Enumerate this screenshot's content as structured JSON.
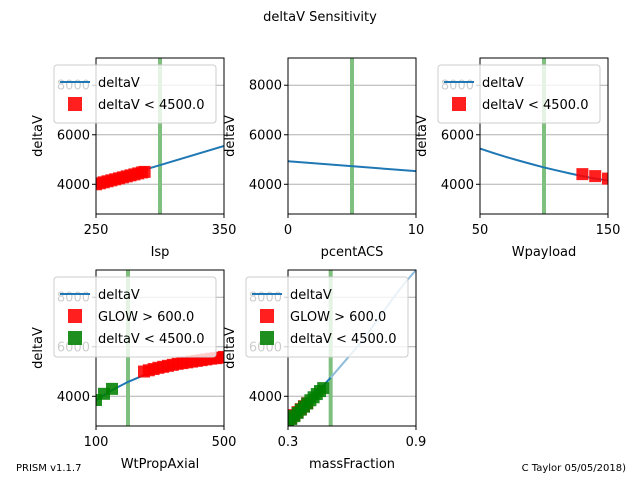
{
  "figure": {
    "title": "deltaV Sensitivity",
    "footer_left": "PRISM v1.1.7",
    "footer_right": "C Taylor 05/05/2018)"
  },
  "colors": {
    "line": "#1f77b4",
    "line_light": "#8fbcdb",
    "marker_red": "#ff0000",
    "marker_green": "#008000",
    "vline": "#7fc07f",
    "grid": "#b0b0b0"
  },
  "chart_data": [
    {
      "type": "line",
      "xlabel": "Isp",
      "ylabel": "deltaV",
      "xlim": [
        250,
        350
      ],
      "ylim": [
        2800,
        9100
      ],
      "xticks": [
        250,
        350
      ],
      "yticks": [
        4000,
        6000,
        8000
      ],
      "x": [
        250,
        350
      ],
      "y": [
        4000,
        5550
      ],
      "vline": 300,
      "legend": "top-left",
      "markers": [
        {
          "name": "deltaV < 4500.0",
          "color": "red",
          "in_legend": true,
          "x": [
            250,
            253,
            256,
            259,
            262,
            265,
            268,
            271,
            274,
            277,
            280,
            283,
            286,
            288
          ],
          "y": [
            4000,
            4040,
            4080,
            4120,
            4160,
            4200,
            4240,
            4280,
            4320,
            4360,
            4400,
            4440,
            4480,
            4500
          ]
        }
      ],
      "legend_entries": [
        "deltaV",
        "deltaV < 4500.0"
      ]
    },
    {
      "type": "line",
      "xlabel": "pcentACS",
      "ylabel": "deltaV",
      "xlim": [
        0,
        10
      ],
      "ylim": [
        2800,
        9100
      ],
      "xticks": [
        0,
        10
      ],
      "yticks": [
        4000,
        6000,
        8000
      ],
      "x": [
        0,
        10
      ],
      "y": [
        4930,
        4530
      ],
      "vline": 5,
      "markers": []
    },
    {
      "type": "line",
      "xlabel": "Wpayload",
      "ylabel": "deltaV",
      "xlim": [
        50,
        150
      ],
      "ylim": [
        2800,
        9100
      ],
      "xticks": [
        50,
        150
      ],
      "yticks": [
        4000,
        6000,
        8000
      ],
      "x": [
        50,
        60,
        70,
        80,
        90,
        100,
        110,
        120,
        130,
        140,
        150
      ],
      "y": [
        5440,
        5270,
        5110,
        4960,
        4820,
        4680,
        4560,
        4440,
        4330,
        4230,
        4150
      ],
      "vline": 100,
      "legend": "top-left",
      "markers": [
        {
          "name": "deltaV < 4500.0",
          "color": "red",
          "in_legend": true,
          "x": [
            130,
            140,
            150
          ],
          "y": [
            4410,
            4330,
            4230
          ]
        }
      ],
      "legend_entries": [
        "deltaV",
        "deltaV < 4500.0"
      ]
    },
    {
      "type": "line",
      "xlabel": "WtPropAxial",
      "ylabel": "deltaV",
      "xlim": [
        100,
        500
      ],
      "ylim": [
        2800,
        9100
      ],
      "xticks": [
        100,
        500
      ],
      "yticks": [
        4000,
        6000,
        8000
      ],
      "x": [
        100,
        150,
        200,
        250,
        300,
        350,
        400,
        450,
        500
      ],
      "y": [
        3850,
        4250,
        4580,
        4850,
        5070,
        5240,
        5380,
        5500,
        5590
      ],
      "vline": 200,
      "legend": "top-left",
      "markers": [
        {
          "name": "GLOW > 600.0",
          "color": "red",
          "in_legend": true,
          "x": [
            250,
            265,
            280,
            295,
            310,
            325,
            340,
            355,
            370,
            385,
            400,
            415,
            430,
            445,
            460,
            475,
            490,
            500
          ],
          "y": [
            5000,
            5050,
            5100,
            5150,
            5190,
            5230,
            5270,
            5310,
            5340,
            5370,
            5400,
            5430,
            5460,
            5490,
            5520,
            5540,
            5560,
            5590
          ]
        },
        {
          "name": "deltaV < 4500.0",
          "color": "green",
          "in_legend": true,
          "x": [
            100,
            125,
            150
          ],
          "y": [
            3850,
            4100,
            4300
          ]
        }
      ],
      "legend_entries": [
        "deltaV",
        "GLOW > 600.0",
        "deltaV < 4500.0"
      ]
    },
    {
      "type": "line",
      "xlabel": "massFraction",
      "ylabel": "deltaV",
      "xlim": [
        0.3,
        0.9
      ],
      "ylim": [
        2800,
        9100
      ],
      "xticks": [
        0.3,
        0.9
      ],
      "yticks": [
        4000,
        6000,
        8000
      ],
      "x": [
        0.3,
        0.35,
        0.4,
        0.45,
        0.5,
        0.55,
        0.6,
        0.65,
        0.7,
        0.75,
        0.8,
        0.85,
        0.9
      ],
      "y": [
        3000,
        3400,
        3850,
        4300,
        4750,
        5250,
        5750,
        6250,
        6850,
        7450,
        8050,
        8600,
        9100
      ],
      "vline": 0.5,
      "light_from": 0.5,
      "legend": "top-left",
      "markers": [
        {
          "name": "GLOW > 600.0",
          "color": "red",
          "in_legend": true,
          "x": [
            0.3,
            0.315,
            0.33,
            0.345,
            0.36,
            0.375,
            0.39
          ],
          "y": [
            3000,
            3120,
            3240,
            3360,
            3480,
            3600,
            3720
          ]
        },
        {
          "name": "deltaV < 4500.0",
          "color": "green",
          "in_legend": true,
          "x": [
            0.3,
            0.315,
            0.33,
            0.345,
            0.36,
            0.375,
            0.39,
            0.405,
            0.42,
            0.435,
            0.45,
            0.465
          ],
          "y": [
            2950,
            3080,
            3200,
            3330,
            3460,
            3580,
            3710,
            3840,
            3960,
            4090,
            4210,
            4330
          ]
        }
      ],
      "legend_entries": [
        "deltaV",
        "GLOW > 600.0",
        "deltaV < 4500.0"
      ]
    }
  ]
}
